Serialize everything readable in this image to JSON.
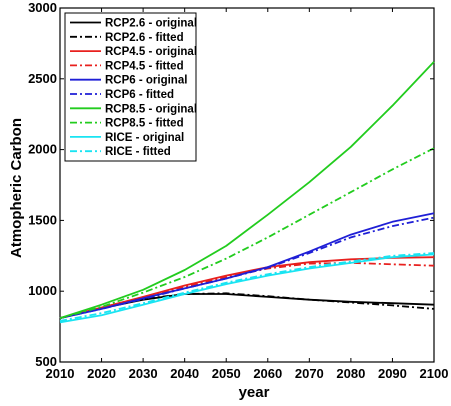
{
  "chart_data": {
    "type": "line",
    "xlabel": "year",
    "ylabel": "Atmopheric Carbon",
    "xlim": [
      2010,
      2100
    ],
    "ylim": [
      500,
      3000
    ],
    "xticks": [
      2010,
      2020,
      2030,
      2040,
      2050,
      2060,
      2070,
      2080,
      2090,
      2100
    ],
    "yticks": [
      500,
      1000,
      1500,
      2000,
      2500,
      3000
    ],
    "grid": false,
    "legend_position": "top-left",
    "x": [
      2010,
      2020,
      2030,
      2040,
      2050,
      2060,
      2070,
      2080,
      2090,
      2100
    ],
    "series": [
      {
        "name": "RCP2.6 - original",
        "color": "#000000",
        "dash": "solid",
        "values": [
          810,
          880,
          940,
          980,
          980,
          960,
          940,
          925,
          915,
          905
        ]
      },
      {
        "name": "RCP2.6 - fitted",
        "color": "#000000",
        "dash": "dashdot",
        "values": [
          810,
          880,
          945,
          980,
          985,
          965,
          940,
          920,
          900,
          875
        ]
      },
      {
        "name": "RCP4.5 - original",
        "color": "#e8201e",
        "dash": "solid",
        "values": [
          810,
          885,
          960,
          1040,
          1110,
          1170,
          1205,
          1225,
          1235,
          1240
        ]
      },
      {
        "name": "RCP4.5 - fitted",
        "color": "#e8201e",
        "dash": "dashdot",
        "values": [
          810,
          885,
          955,
          1030,
          1100,
          1160,
          1195,
          1200,
          1190,
          1180
        ]
      },
      {
        "name": "RCP6 - original",
        "color": "#1f1fd6",
        "dash": "solid",
        "values": [
          810,
          875,
          950,
          1020,
          1090,
          1170,
          1280,
          1400,
          1490,
          1550
        ]
      },
      {
        "name": "RCP6 - fitted",
        "color": "#1f1fd6",
        "dash": "dashdot",
        "values": [
          810,
          875,
          945,
          1020,
          1090,
          1165,
          1270,
          1380,
          1460,
          1520
        ]
      },
      {
        "name": "RCP8.5 - original",
        "color": "#22cc1e",
        "dash": "solid",
        "values": [
          810,
          905,
          1010,
          1150,
          1320,
          1540,
          1770,
          2020,
          2310,
          2620
        ]
      },
      {
        "name": "RCP8.5 - fitted",
        "color": "#22cc1e",
        "dash": "dashdot",
        "values": [
          810,
          890,
          990,
          1100,
          1230,
          1380,
          1540,
          1700,
          1860,
          2010
        ]
      },
      {
        "name": "RICE - original",
        "color": "#19e4f2",
        "dash": "solid",
        "values": [
          780,
          830,
          905,
          980,
          1050,
          1110,
          1160,
          1200,
          1240,
          1260
        ]
      },
      {
        "name": "RICE - fitted",
        "color": "#19e4f2",
        "dash": "dashdot",
        "values": [
          790,
          845,
          915,
          990,
          1060,
          1120,
          1170,
          1210,
          1250,
          1270
        ]
      }
    ]
  }
}
